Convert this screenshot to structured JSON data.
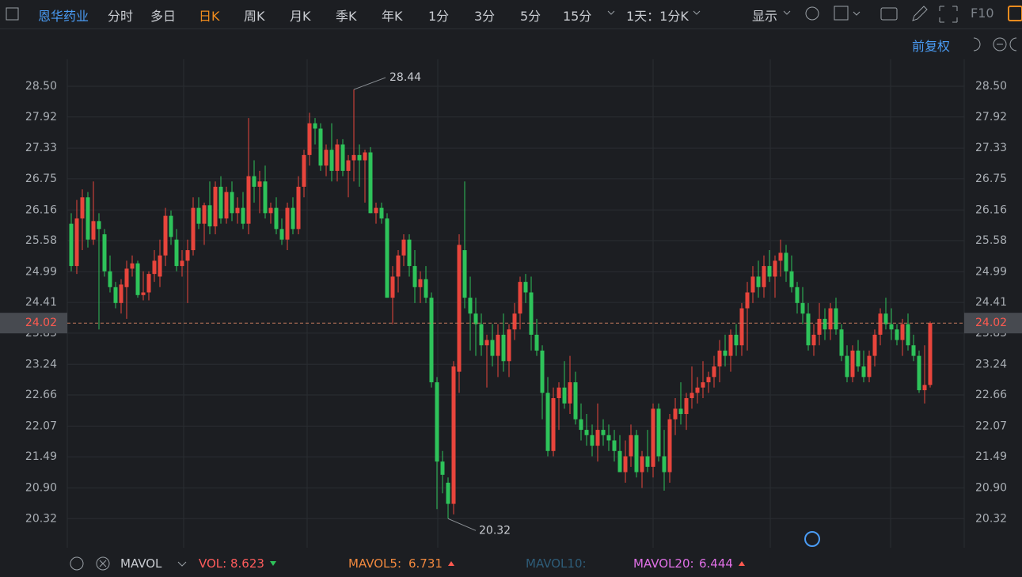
{
  "toolbar": {
    "stock": "恩华药业",
    "periods": [
      "分时",
      "多日",
      "日K",
      "周K",
      "月K",
      "季K",
      "年K",
      "1分",
      "3分",
      "5分",
      "15分"
    ],
    "active": 2,
    "interval": "1天：1分K",
    "display": "显示",
    "f10": "F10"
  },
  "adjust": "前复权",
  "indicator": {
    "name": "MAVOL",
    "items": [
      {
        "label": "VOL:",
        "value": 8.623,
        "color": "#ff5c5c",
        "trend": "down"
      },
      {
        "label": "MAVOL5:",
        "value": 6.731,
        "color": "#f0883e",
        "trend": "up"
      },
      {
        "label": "MAVOL10:",
        "color": "#2e5c78"
      },
      {
        "label": "MAVOL20:",
        "value": 6.444,
        "color": "#e070e6",
        "trend": "up"
      }
    ]
  },
  "chart_data": {
    "type": "candlestick",
    "up_color": "#e8453c",
    "down_color": "#2ec35a",
    "grid": true,
    "ylim": [
      19.77,
      29.01
    ],
    "yticks": [
      {
        "value": 28.5,
        "label": "28.50"
      },
      27.92,
      27.33,
      26.75,
      26.16,
      25.58,
      24.99,
      24.41,
      23.83,
      23.24,
      22.66,
      22.07,
      21.49,
      {
        "value": 20.9,
        "label": "20.90"
      },
      20.32
    ],
    "current_price": 24.02,
    "max_label": 28.44,
    "min_label": 20.32,
    "open": [
      25.9,
      25.1,
      26,
      26.4,
      25.6,
      25.95,
      25.7,
      25,
      24.7,
      24.4,
      24.7,
      25.05,
      25.15,
      24.55,
      24.6,
      24.95,
      24.9,
      25.3,
      26.05,
      25.6,
      25.1,
      25.2,
      25.4,
      26.2,
      25.9,
      26.25,
      25.85,
      26.6,
      26,
      26.5,
      26.1,
      26.2,
      25.9,
      26.8,
      26.6,
      26.7,
      26.1,
      26.2,
      25.8,
      25.6,
      26.2,
      25.8,
      26.6,
      27.2,
      27.8,
      27.7,
      27,
      27.3,
      26.9,
      27.4,
      26.9,
      27.1,
      27.2,
      27.1,
      27.25,
      26.1,
      26.2,
      26,
      24.5,
      24.9,
      25.3,
      25.6,
      25.1,
      24.7,
      24.85,
      24.5,
      22.9,
      21.4,
      21,
      20.6,
      23.1,
      25.4,
      24.5,
      24.2,
      24,
      23.6,
      23.7,
      23.4,
      23.8,
      23.3,
      23.9,
      24.2,
      24.8,
      24.6,
      23.8,
      23.5,
      22.7,
      21.6,
      22.6,
      22.8,
      22.5,
      22.9,
      22.2,
      22,
      21.9,
      21.7,
      22,
      21.9,
      21.8,
      21.6,
      21.2,
      21.5,
      21.9,
      21.2,
      21.5,
      21.3,
      22.4,
      21.5,
      21.2,
      22.2,
      22.4,
      22.3,
      22.6,
      22.7,
      22.8,
      22.9,
      23,
      23.2,
      23.5,
      23.4,
      23.8,
      23.6,
      24.3,
      24.6,
      24.9,
      24.7,
      25.1,
      24.9,
      25.2,
      25.35,
      25,
      24.7,
      24.4,
      24.2,
      23.6,
      23.8,
      24.1,
      23.9,
      24.3,
      23.9,
      23.4,
      23,
      23.5,
      23.2,
      23,
      23.4,
      23.8,
      24.2,
      24,
      23.9,
      23.7,
      24,
      23.6,
      23.4,
      22.75,
      22.85
    ],
    "high": [
      26.1,
      26.35,
      26.55,
      26.5,
      26.7,
      26.1,
      25.8,
      25.3,
      24.8,
      24.85,
      25.2,
      25.3,
      25.2,
      25,
      25,
      25.4,
      25.6,
      26.2,
      26.15,
      25.8,
      25.4,
      25.6,
      26.4,
      26.4,
      26.3,
      26.7,
      26.7,
      26.8,
      26.6,
      26.7,
      26.4,
      26.5,
      27.9,
      27.1,
      26.9,
      27,
      26.3,
      26.4,
      26,
      26.3,
      26.4,
      26.8,
      27.3,
      28,
      27.9,
      27.8,
      27.4,
      27.8,
      27.5,
      27.5,
      27.2,
      28.44,
      27.4,
      27.3,
      27.35,
      26.3,
      26.3,
      26.1,
      25.1,
      25.4,
      25.7,
      25.7,
      25.4,
      25,
      25.1,
      24.6,
      23,
      21.6,
      21.1,
      23.3,
      25.7,
      26.7,
      24.9,
      24.5,
      24.2,
      23.8,
      24,
      24,
      24.2,
      24,
      24.4,
      24.9,
      24.95,
      24.9,
      24.1,
      23.6,
      23,
      22.8,
      22.9,
      23.3,
      23.4,
      23.1,
      22.5,
      22.3,
      22.1,
      22.5,
      22.2,
      22.1,
      22,
      21.9,
      21.8,
      22.1,
      22,
      21.6,
      22,
      22.5,
      22.5,
      22,
      22.3,
      22.6,
      22.9,
      22.7,
      23.2,
      23,
      23.3,
      23.1,
      23.4,
      23.7,
      23.8,
      23.9,
      24,
      24.4,
      24.8,
      25.1,
      25.2,
      25.3,
      25.4,
      25.3,
      25.6,
      25.5,
      25.3,
      24.8,
      24.7,
      24.4,
      24,
      24.4,
      24.3,
      24.4,
      24.5,
      24,
      23.6,
      23.6,
      23.7,
      23.5,
      23.5,
      23.9,
      24.3,
      24.5,
      24.3,
      24,
      24.1,
      24.2,
      23.8,
      23.5,
      23.6,
      24.05
    ],
    "low": [
      25,
      24.95,
      25.4,
      25.45,
      25.5,
      23.9,
      24.9,
      24.6,
      24.3,
      24.2,
      24.1,
      24.9,
      24.5,
      24.45,
      24.45,
      24.8,
      24.7,
      25.1,
      25.5,
      25,
      24.9,
      24.4,
      25.3,
      25.8,
      25.5,
      25.7,
      25.7,
      25.9,
      25.9,
      25.95,
      25.9,
      25.8,
      25.7,
      26.3,
      26.1,
      26,
      25.9,
      25.7,
      25.5,
      25.4,
      25.7,
      25.7,
      26.4,
      27,
      27.4,
      26.9,
      26.8,
      26.7,
      26.7,
      26.8,
      26.4,
      26.7,
      26.6,
      26.3,
      26.1,
      25.9,
      25.9,
      24.5,
      24,
      24.6,
      25.1,
      24.9,
      24.4,
      24.4,
      24.4,
      22.8,
      20.5,
      20.8,
      20.32,
      20.4,
      22.7,
      24.3,
      23.5,
      23.4,
      23.4,
      22.8,
      23.2,
      23,
      23.1,
      23,
      23.7,
      23.9,
      24.4,
      23.5,
      23.4,
      22.2,
      21.5,
      21.5,
      22,
      22.4,
      22.3,
      22.1,
      21.8,
      21.7,
      21.5,
      21.4,
      21.7,
      21.6,
      21.4,
      21.2,
      21,
      21.3,
      21.1,
      20.9,
      21.2,
      21.1,
      21.4,
      20.85,
      21,
      21.9,
      22.1,
      22,
      22.4,
      22.5,
      22.6,
      22.7,
      22.8,
      22.9,
      23.2,
      23.1,
      23.4,
      23.4,
      23.5,
      24.4,
      24.5,
      24.5,
      24.8,
      24.5,
      24.9,
      24.8,
      24.6,
      24.2,
      24,
      23.5,
      23.4,
      23.6,
      23.7,
      23.7,
      23.8,
      23.3,
      22.9,
      22.9,
      23.1,
      22.9,
      22.9,
      23.2,
      23.6,
      23.9,
      23.7,
      23.6,
      23.4,
      23.5,
      23.3,
      22.7,
      22.5,
      22.8
    ],
    "close": [
      25.1,
      26,
      26.4,
      25.6,
      25.95,
      25.8,
      25,
      24.7,
      24.4,
      24.75,
      25.05,
      25.15,
      24.55,
      24.6,
      24.95,
      25.2,
      25.3,
      26.05,
      25.65,
      25.1,
      25.2,
      25.4,
      26.2,
      25.9,
      26.25,
      25.85,
      26.6,
      26,
      26.5,
      26.1,
      26.2,
      25.9,
      26.8,
      26.6,
      26.7,
      26.1,
      26.2,
      25.8,
      25.6,
      26.2,
      25.8,
      26.6,
      27.2,
      27.8,
      27.7,
      27,
      27.3,
      26.9,
      27.4,
      26.9,
      27.1,
      27.2,
      27.1,
      27.25,
      26.1,
      26.2,
      26,
      24.5,
      24.9,
      25.3,
      25.6,
      25.1,
      24.7,
      24.85,
      24.5,
      22.9,
      21.4,
      21.15,
      20.6,
      23.2,
      25.5,
      24.5,
      24.2,
      24,
      23.6,
      23.7,
      23.4,
      23.8,
      23.3,
      23.9,
      24.2,
      24.8,
      24.6,
      23.8,
      23.5,
      22.7,
      21.6,
      22.6,
      22.8,
      22.5,
      22.9,
      22.2,
      22,
      21.9,
      21.7,
      22,
      21.9,
      21.8,
      21.6,
      21.2,
      21.5,
      21.9,
      21.2,
      21.5,
      21.3,
      22.4,
      21.5,
      21.2,
      22.2,
      22.4,
      22.3,
      22.6,
      22.7,
      22.8,
      22.9,
      23,
      23.2,
      23.5,
      23.4,
      23.8,
      23.6,
      24.3,
      24.6,
      24.9,
      24.7,
      25.1,
      24.9,
      25.2,
      25.35,
      25,
      24.7,
      24.4,
      24.2,
      23.6,
      23.8,
      24.1,
      23.9,
      24.3,
      23.9,
      23.4,
      23,
      23.5,
      23.2,
      23,
      23.4,
      23.8,
      24.2,
      24,
      23.9,
      23.7,
      24,
      23.6,
      23.4,
      22.75,
      22.85,
      24.02
    ]
  }
}
